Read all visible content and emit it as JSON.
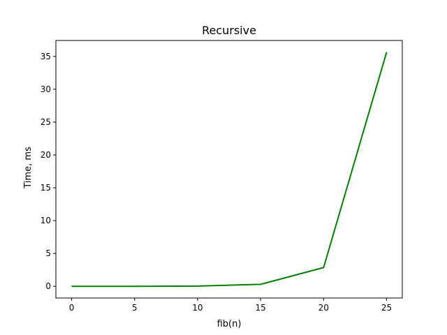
{
  "chart_data": {
    "type": "line",
    "title": "Recursive",
    "xlabel": "fib(n)",
    "ylabel": "Time, ms",
    "xlim": [
      -1.25,
      26.25
    ],
    "ylim": [
      -1.78,
      37.43
    ],
    "xticks": [
      0,
      5,
      10,
      15,
      20,
      25
    ],
    "yticks": [
      0,
      5,
      10,
      15,
      20,
      25,
      30,
      35
    ],
    "grid": false,
    "series": [
      {
        "color": "#008000",
        "x": [
          0,
          5,
          10,
          15,
          20,
          25
        ],
        "y": [
          0.0,
          0.0,
          0.04,
          0.3,
          2.85,
          35.65
        ]
      }
    ]
  }
}
